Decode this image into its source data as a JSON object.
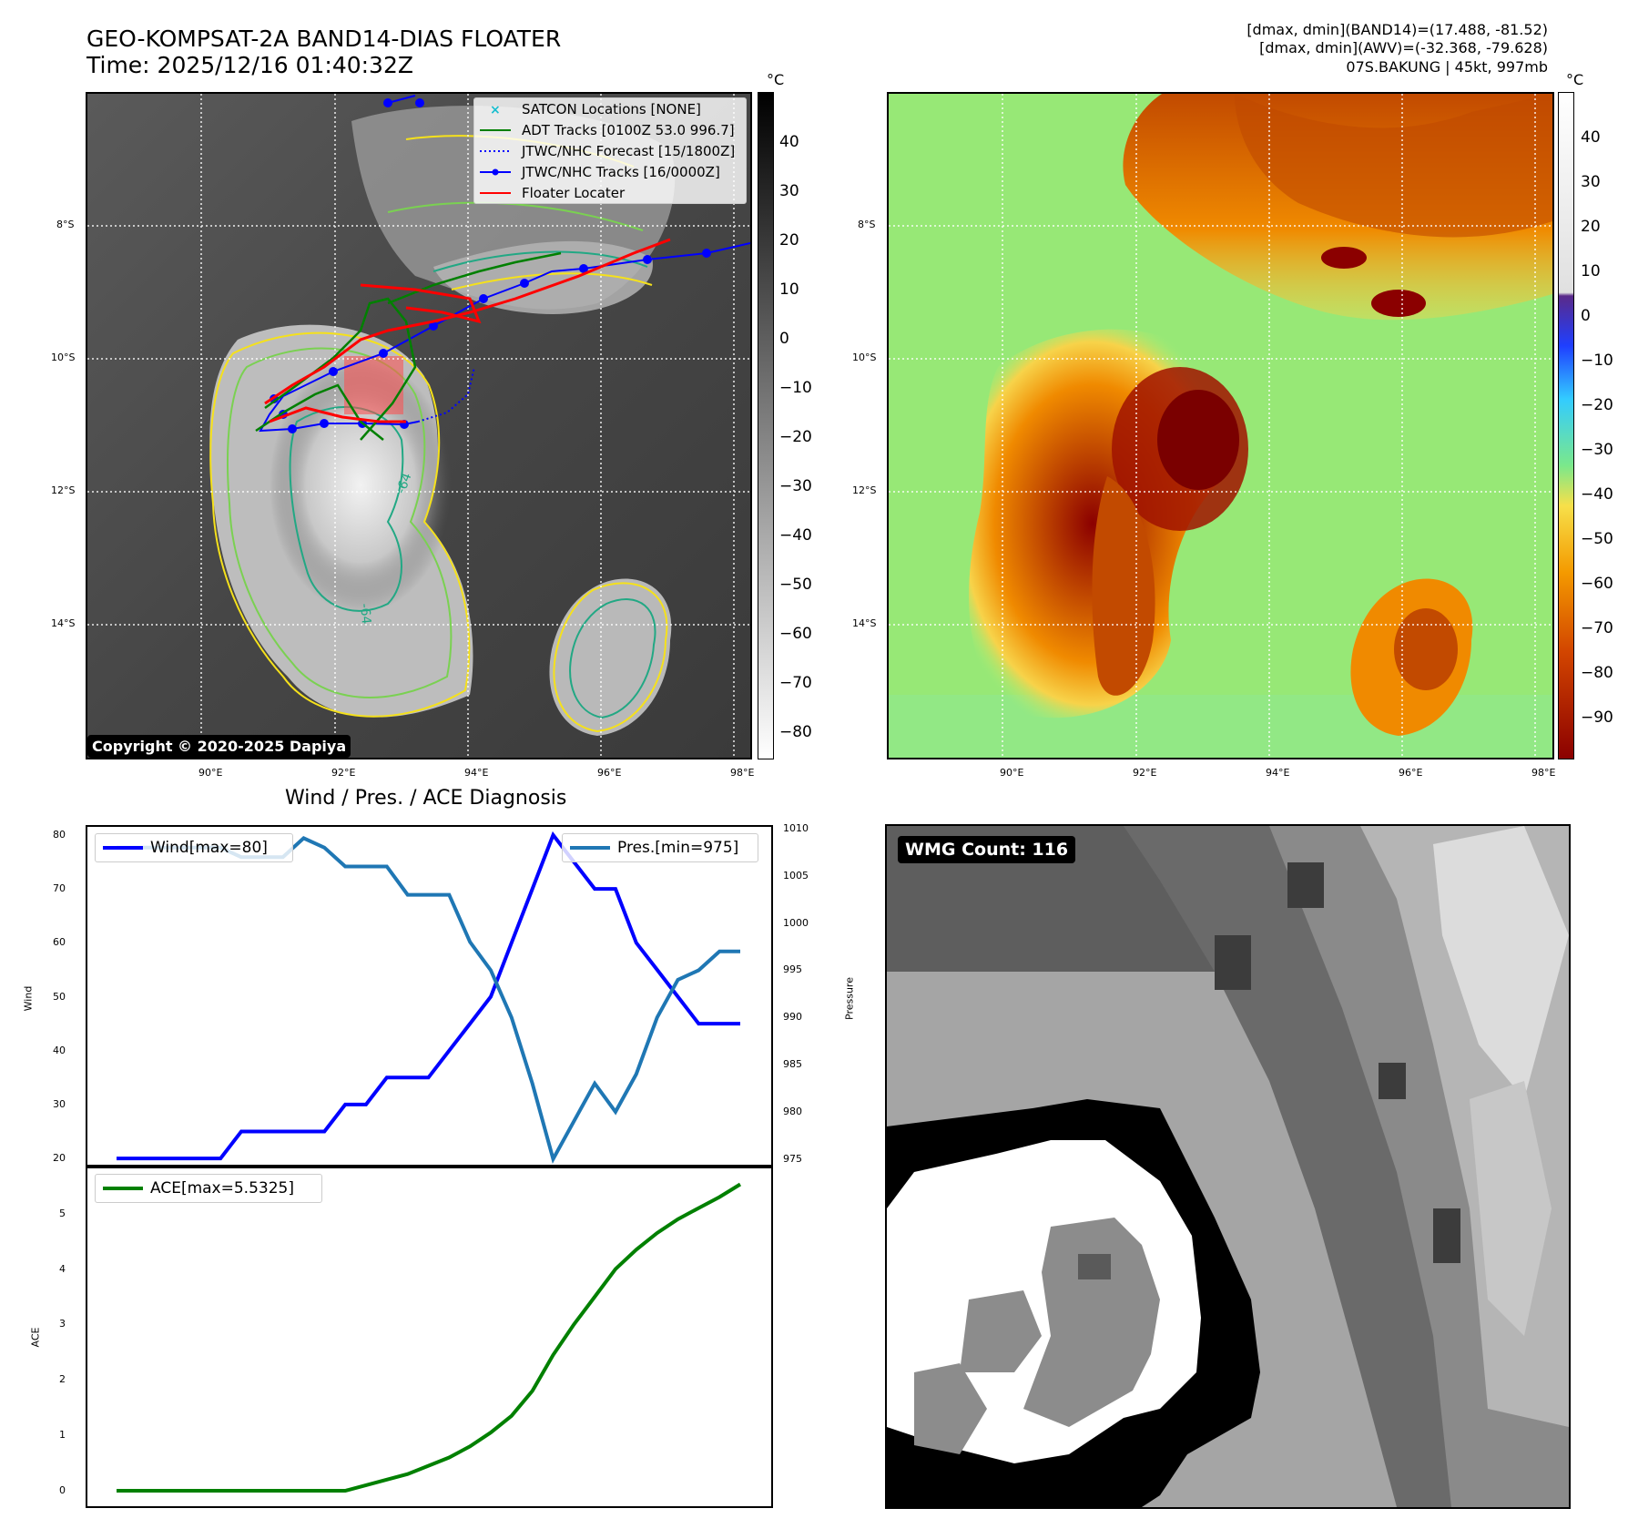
{
  "header": {
    "title_line1": "GEO-KOMPSAT-2A BAND14-DIAS FLOATER",
    "title_line2": "Time: 2025/12/16 01:40:32Z",
    "info_line1": "[dmax, dmin](BAND14)=(17.488, -81.52)",
    "info_line2": "[dmax, dmin](AWV)=(-32.368, -79.628)",
    "info_line3": "07S.BAKUNG | 45kt, 997mb"
  },
  "map_left": {
    "unit": "°C",
    "lat_labels": [
      "8°S",
      "10°S",
      "12°S",
      "14°S"
    ],
    "lon_labels": [
      "90°E",
      "92°E",
      "94°E",
      "96°E",
      "98°E"
    ],
    "colorbar_ticks": [
      "40",
      "30",
      "20",
      "10",
      "0",
      "−10",
      "−20",
      "−30",
      "−40",
      "−50",
      "−60",
      "−70",
      "−80"
    ],
    "legend": [
      {
        "label": "SATCON Locations [NONE]",
        "color": "#17becf",
        "style": "x"
      },
      {
        "label": "ADT Tracks [0100Z 53.0 996.7]",
        "color": "#008000",
        "style": "line"
      },
      {
        "label": "JTWC/NHC Forecast [15/1800Z]",
        "color": "#0000ff",
        "style": "dotted"
      },
      {
        "label": "JTWC/NHC Tracks [16/0000Z]",
        "color": "#0000ff",
        "style": "line-dot"
      },
      {
        "label": "Floater Locater",
        "color": "#ff0000",
        "style": "line"
      }
    ],
    "contour_labels": [
      "-64",
      "-64"
    ],
    "copyright": "Copyright © 2020-2025 Dapiya"
  },
  "map_right": {
    "unit": "°C",
    "lat_labels": [
      "8°S",
      "10°S",
      "12°S",
      "14°S"
    ],
    "lon_labels": [
      "90°E",
      "92°E",
      "94°E",
      "96°E",
      "98°E"
    ],
    "colorbar_ticks": [
      "40",
      "30",
      "20",
      "10",
      "0",
      "−10",
      "−20",
      "−30",
      "−40",
      "−50",
      "−60",
      "−70",
      "−80",
      "−90"
    ]
  },
  "wmg": {
    "badge": "WMG Count: 116"
  },
  "chart_data": [
    {
      "type": "line",
      "title": "Wind / Pres. / ACE Diagnosis",
      "ylabel": "Wind",
      "y2label": "Pressure",
      "ylim": [
        18.5,
        81.5
      ],
      "y2lim": [
        974.2,
        1010.2
      ],
      "yticks": [
        20,
        30,
        40,
        50,
        60,
        70,
        80
      ],
      "y2ticks": [
        975,
        980,
        985,
        990,
        995,
        1000,
        1005,
        1010
      ],
      "x_index": [
        0,
        1,
        2,
        3,
        4,
        5,
        6,
        7,
        8,
        9,
        10,
        11,
        12,
        13,
        14,
        15,
        16,
        17,
        18,
        19,
        20,
        21,
        22,
        23,
        24,
        25,
        26,
        27,
        28,
        29,
        30
      ],
      "series": [
        {
          "name": "Wind[max=80]",
          "color": "#0000ff",
          "axis": "left",
          "values": [
            20,
            20,
            20,
            20,
            20,
            20,
            25,
            25,
            25,
            25,
            25,
            30,
            30,
            35,
            35,
            35,
            40,
            45,
            50,
            60,
            70,
            80,
            75,
            70,
            70,
            60,
            55,
            50,
            45,
            45,
            45
          ]
        },
        {
          "name": "Pres.[min=975]",
          "color": "#1f77b4",
          "axis": "right",
          "values": [
            1008,
            1008,
            1008,
            1008,
            1008,
            1008,
            1007,
            1007,
            1007,
            1009,
            1008,
            1006,
            1006,
            1006,
            1003,
            1003,
            1003,
            998,
            995,
            990,
            983,
            975,
            979,
            983,
            980,
            984,
            990,
            994,
            995,
            997,
            997
          ]
        }
      ]
    },
    {
      "type": "line",
      "ylabel": "ACE",
      "ylim": [
        -0.28,
        5.85
      ],
      "yticks": [
        0,
        1,
        2,
        3,
        4,
        5
      ],
      "x_index": [
        0,
        1,
        2,
        3,
        4,
        5,
        6,
        7,
        8,
        9,
        10,
        11,
        12,
        13,
        14,
        15,
        16,
        17,
        18,
        19,
        20,
        21,
        22,
        23,
        24,
        25,
        26,
        27,
        28,
        29,
        30
      ],
      "series": [
        {
          "name": "ACE[max=5.5325]",
          "color": "#008000",
          "values": [
            0,
            0,
            0,
            0,
            0,
            0,
            0,
            0,
            0,
            0,
            0,
            0,
            0.1,
            0.2,
            0.3,
            0.45,
            0.6,
            0.8,
            1.05,
            1.35,
            1.8,
            2.45,
            3.0,
            3.5,
            4.0,
            4.35,
            4.65,
            4.9,
            5.1,
            5.3,
            5.53
          ]
        }
      ]
    }
  ]
}
